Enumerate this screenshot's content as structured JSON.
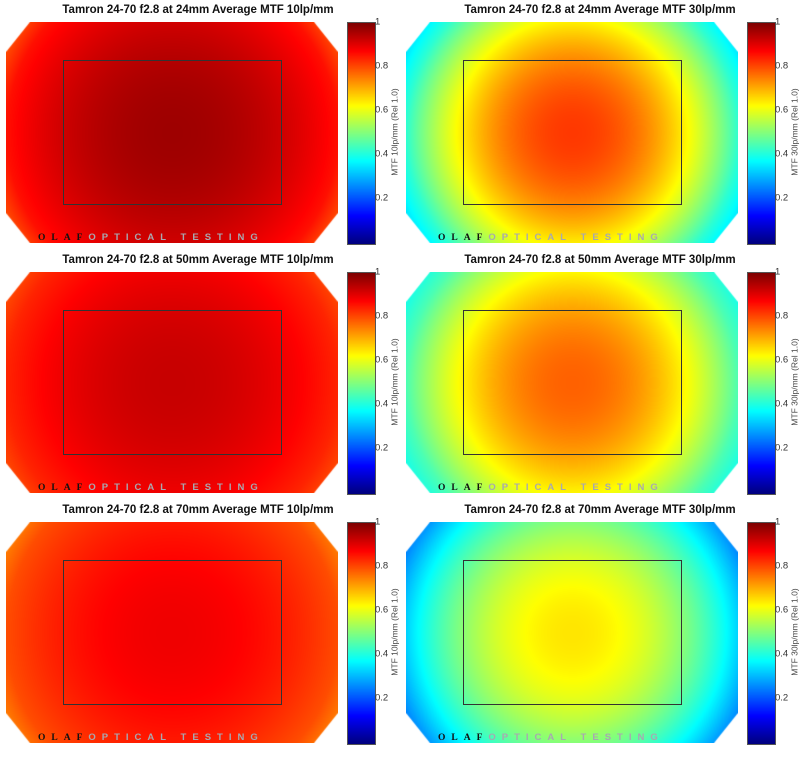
{
  "chart_data": {
    "type": "heatmap",
    "colormap": "jet",
    "clim": [
      0,
      1
    ],
    "colorbar_ticks": [
      "0.2",
      "0.4",
      "0.6",
      "0.8",
      "1"
    ],
    "watermark": {
      "left": "O L A F",
      "right": "OPTICAL TESTING"
    },
    "panels": [
      {
        "title": "Tamron 24-70 f2.8 at 24mm Average MTF 10lp/mm",
        "cblabel": "MTF 10lp/mm (Rel 1.0)",
        "center_value": 0.97,
        "edge_value": 0.86,
        "corner_value": 0.76
      },
      {
        "title": "Tamron 24-70 f2.8 at 24mm Average MTF 30lp/mm",
        "cblabel": "MTF 30lp/mm (Rel 1.0)",
        "center_value": 0.82,
        "edge_value": 0.42,
        "corner_value": 0.3
      },
      {
        "title": "Tamron 24-70 f2.8 at 50mm Average MTF 10lp/mm",
        "cblabel": "MTF 10lp/mm (Rel 1.0)",
        "center_value": 0.93,
        "edge_value": 0.84,
        "corner_value": 0.78
      },
      {
        "title": "Tamron 24-70 f2.8 at 50mm Average MTF 30lp/mm",
        "cblabel": "MTF 30lp/mm (Rel 1.0)",
        "center_value": 0.78,
        "edge_value": 0.45,
        "corner_value": 0.36
      },
      {
        "title": "Tamron 24-70 f2.8 at 70mm Average MTF 10lp/mm",
        "cblabel": "MTF 10lp/mm (Rel 1.0)",
        "center_value": 0.89,
        "edge_value": 0.8,
        "corner_value": 0.72
      },
      {
        "title": "Tamron 24-70 f2.8 at 70mm Average MTF 30lp/mm",
        "cblabel": "MTF 30lp/mm (Rel 1.0)",
        "center_value": 0.65,
        "edge_value": 0.33,
        "corner_value": 0.2
      }
    ]
  }
}
